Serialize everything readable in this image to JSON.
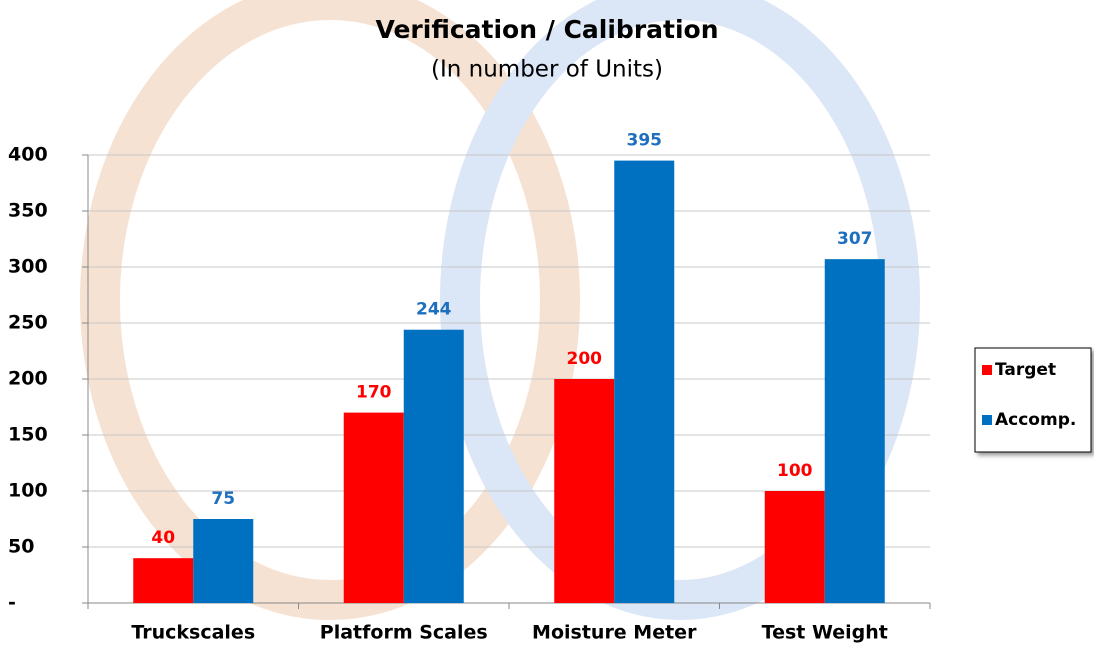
{
  "chart_data": {
    "type": "bar",
    "title": "Verification / Calibration",
    "subtitle": "(In number of Units)",
    "categories": [
      "Truckscales",
      "Platform Scales",
      "Moisture Meter",
      "Test Weight"
    ],
    "series": [
      {
        "name": "Target",
        "color": "#ff0000",
        "label_color": "#ff0000",
        "values": [
          40,
          170,
          200,
          100
        ]
      },
      {
        "name": "Accomp.",
        "color": "#0070c0",
        "label_color": "#1f6fbf",
        "values": [
          75,
          244,
          395,
          307
        ]
      }
    ],
    "ylim": [
      0,
      400
    ],
    "yticks": [
      {
        "value": 0,
        "label": "-"
      },
      50,
      100,
      150,
      200,
      250,
      300,
      350,
      400
    ],
    "grid": true,
    "legend": "right"
  }
}
